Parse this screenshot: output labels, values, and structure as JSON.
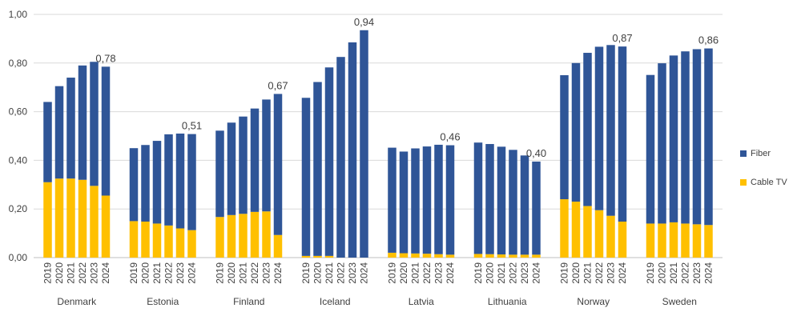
{
  "chart_data": {
    "type": "bar",
    "stacked": true,
    "title": "",
    "xlabel": "",
    "ylabel": "",
    "ylim": [
      0,
      1.0
    ],
    "yticks": [
      "0,00",
      "0,20",
      "0,40",
      "0,60",
      "0,80",
      "1,00"
    ],
    "ytick_values": [
      0,
      0.2,
      0.4,
      0.6,
      0.8,
      1.0
    ],
    "grid": true,
    "legend_position": "right",
    "years": [
      "2019",
      "2020",
      "2021",
      "2022",
      "2023",
      "2024"
    ],
    "groups": [
      {
        "country": "Denmark",
        "fiber": [
          0.33,
          0.38,
          0.415,
          0.47,
          0.51,
          0.53
        ],
        "cable": [
          0.31,
          0.325,
          0.325,
          0.32,
          0.295,
          0.255
        ],
        "label": "0,78"
      },
      {
        "country": "Estonia",
        "fiber": [
          0.3,
          0.315,
          0.34,
          0.375,
          0.39,
          0.395
        ],
        "cable": [
          0.15,
          0.148,
          0.14,
          0.132,
          0.12,
          0.113
        ],
        "label": "0,51"
      },
      {
        "country": "Finland",
        "fiber": [
          0.355,
          0.38,
          0.4,
          0.425,
          0.46,
          0.58
        ],
        "cable": [
          0.167,
          0.175,
          0.18,
          0.188,
          0.19,
          0.093
        ],
        "label": "0,67"
      },
      {
        "country": "Iceland",
        "fiber": [
          0.65,
          0.715,
          0.775,
          0.825,
          0.885,
          0.935
        ],
        "cable": [
          0.007,
          0.007,
          0.007,
          0.0,
          0.0,
          0.0
        ],
        "label": "0,94"
      },
      {
        "country": "Latvia",
        "fiber": [
          0.432,
          0.418,
          0.432,
          0.441,
          0.45,
          0.45
        ],
        "cable": [
          0.02,
          0.018,
          0.017,
          0.016,
          0.014,
          0.012
        ],
        "label": "0,46"
      },
      {
        "country": "Lithuania",
        "fiber": [
          0.458,
          0.453,
          0.443,
          0.431,
          0.408,
          0.383
        ],
        "cable": [
          0.015,
          0.014,
          0.013,
          0.012,
          0.012,
          0.012
        ],
        "label": "0,40"
      },
      {
        "country": "Norway",
        "fiber": [
          0.51,
          0.57,
          0.63,
          0.672,
          0.702,
          0.72
        ],
        "cable": [
          0.24,
          0.23,
          0.212,
          0.195,
          0.172,
          0.148
        ],
        "label": "0,87"
      },
      {
        "country": "Sweden",
        "fiber": [
          0.611,
          0.659,
          0.686,
          0.708,
          0.72,
          0.726
        ],
        "cable": [
          0.14,
          0.14,
          0.145,
          0.14,
          0.137,
          0.134
        ],
        "label": "0,86"
      }
    ],
    "series": [
      {
        "name": "Fiber",
        "color": "#2f5597"
      },
      {
        "name": "Cable TV",
        "color": "#ffc000"
      }
    ]
  }
}
